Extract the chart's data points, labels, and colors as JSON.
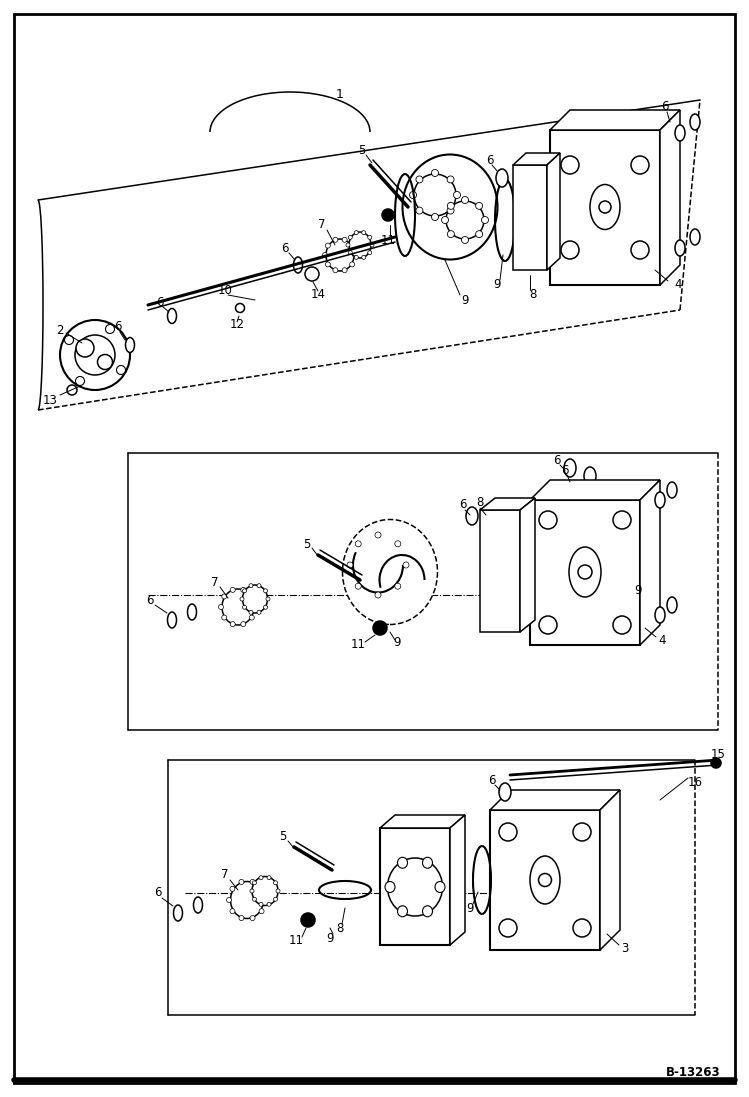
{
  "fig_width": 7.49,
  "fig_height": 10.97,
  "dpi": 100,
  "bg_color": "#ffffff",
  "line_color": "#000000",
  "ref_label": "B-13263"
}
